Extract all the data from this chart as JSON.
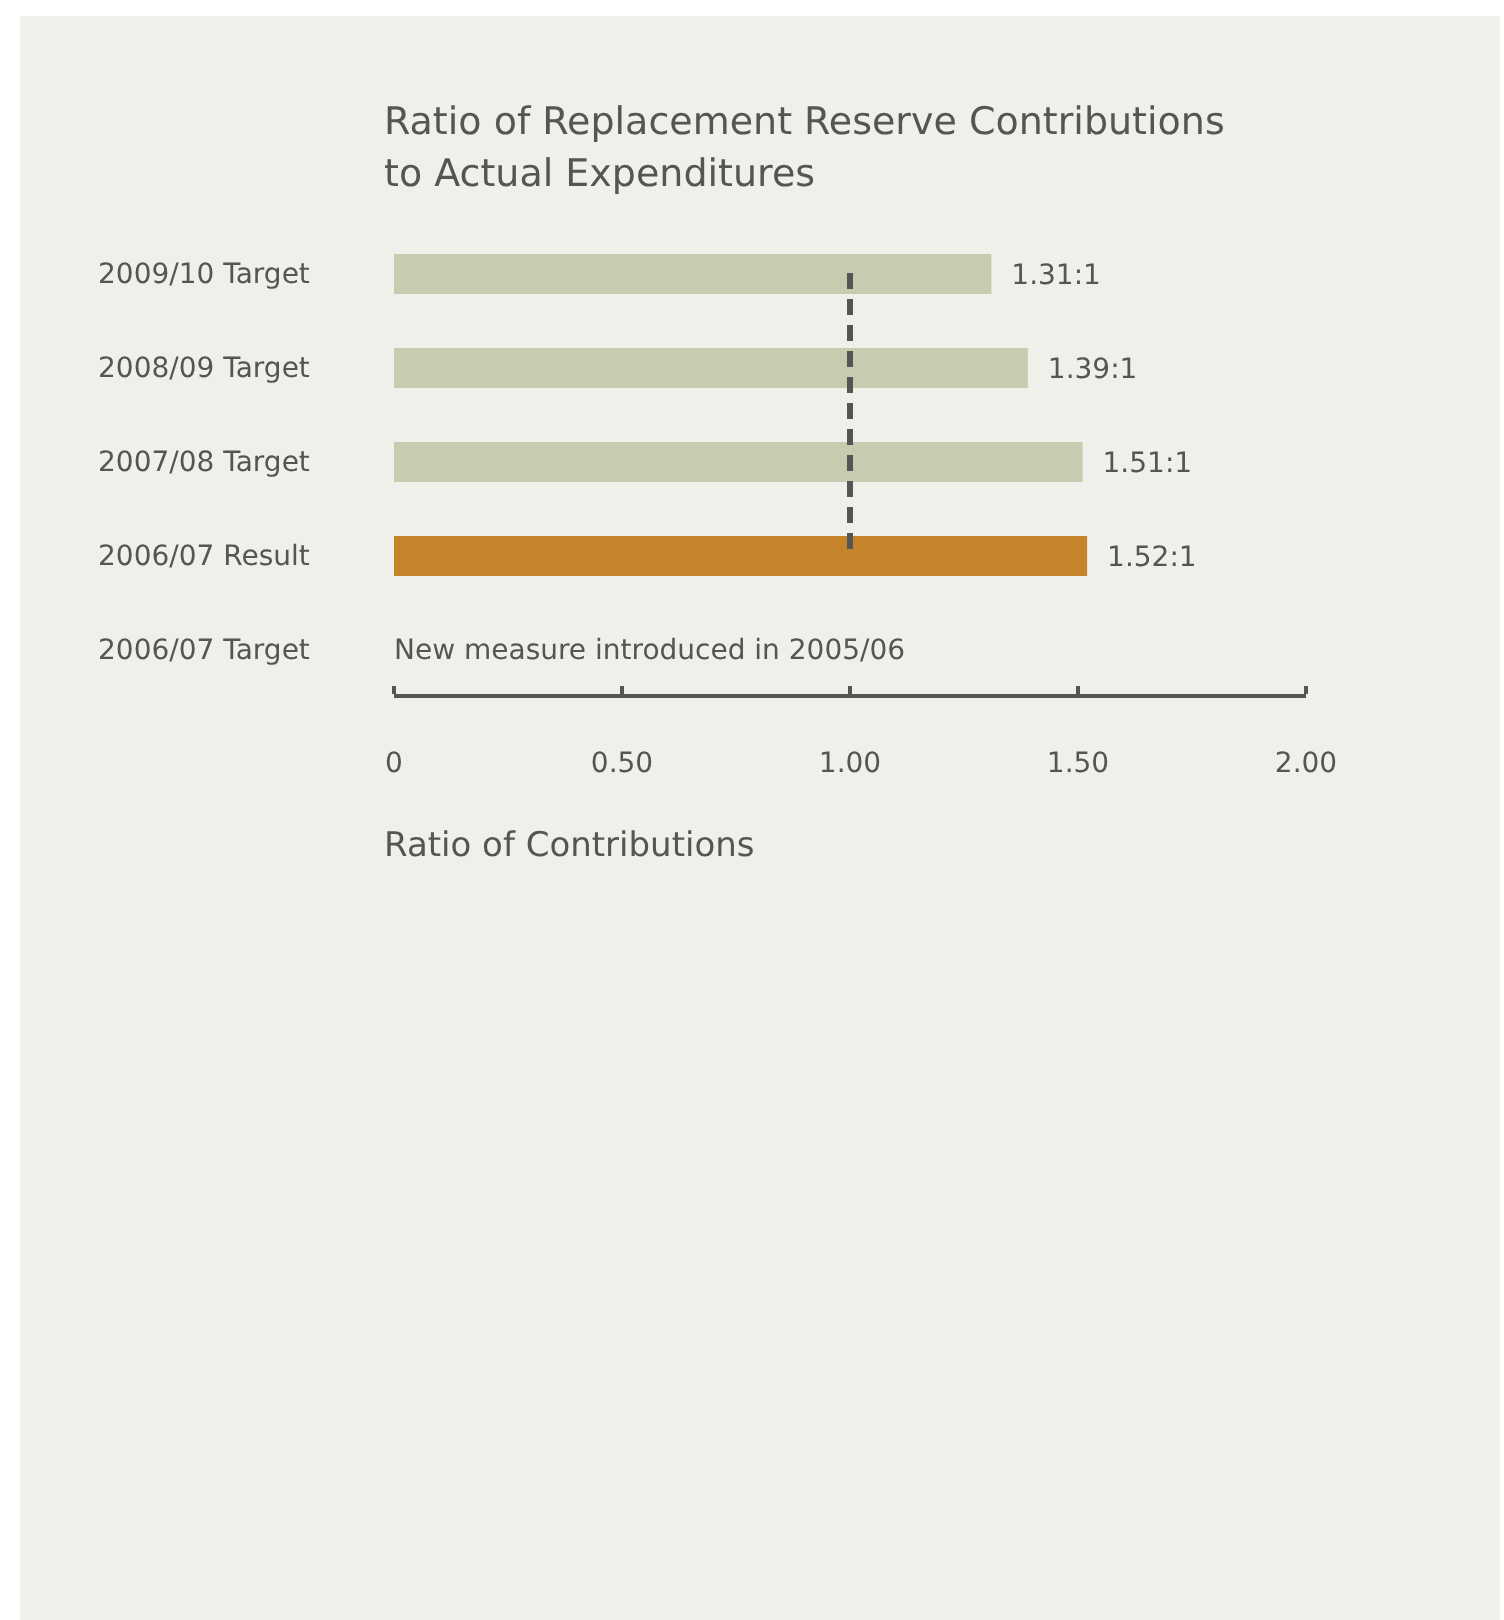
{
  "chart_data": {
    "type": "bar",
    "orientation": "horizontal",
    "title": "Ratio of Replacement Reserve Contributions to Actual Expenditures",
    "xlabel": "Ratio of Contributions",
    "categories": [
      "2009/10 Target",
      "2008/09 Target",
      "2007/08 Target",
      "2006/07 Result",
      "2006/07 Target"
    ],
    "values": [
      1.31,
      1.39,
      1.51,
      1.52,
      null
    ],
    "colors": [
      "#c8cbb0",
      "#c8cbb0",
      "#c8cbb0",
      "#c5832a",
      "#c8cbb0"
    ],
    "value_labels": [
      "1.31:1",
      "1.39:1",
      "1.51:1",
      "1.52:1",
      null
    ],
    "xlim": [
      0,
      2
    ],
    "xticks": [
      0,
      {
        "value": 0.5,
        "label": "0.50"
      },
      {
        "value": 1,
        "label": "1.00"
      },
      {
        "value": 1.5,
        "label": "1.50"
      },
      {
        "value": 2,
        "label": "2.00"
      }
    ],
    "ref_lines": [
      {
        "axis": "x",
        "value": 1,
        "line_style": "dashed",
        "color": "#555555"
      }
    ],
    "annotations": [
      "New measure introduced in 2005/06"
    ]
  }
}
